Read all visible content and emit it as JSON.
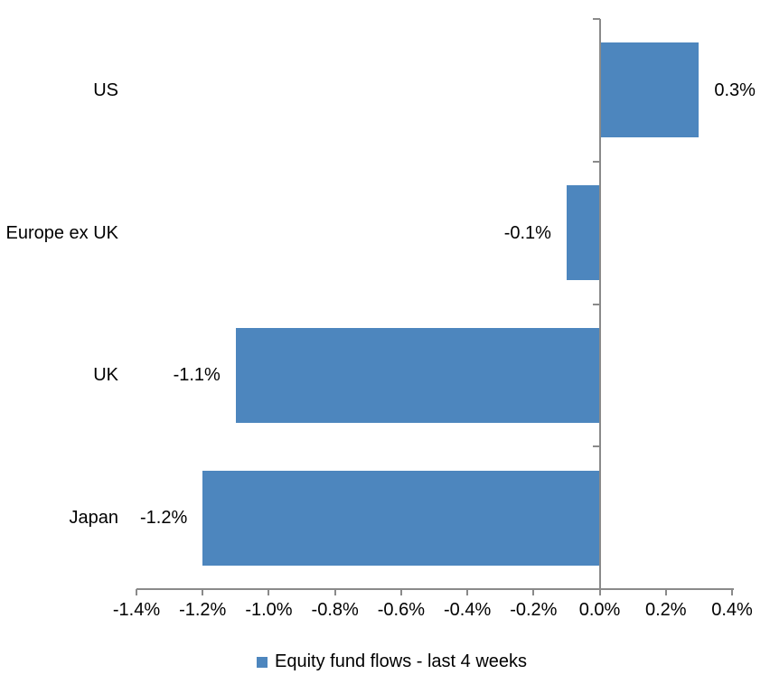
{
  "chart_data": {
    "type": "bar",
    "orientation": "horizontal",
    "title": "",
    "xlabel": "",
    "ylabel": "",
    "categories": [
      "US",
      "Europe ex UK",
      "UK",
      "Japan"
    ],
    "series": [
      {
        "name": "Equity fund flows - last 4 weeks",
        "values": [
          0.3,
          -0.1,
          -1.1,
          -1.2
        ],
        "data_labels": [
          "0.3%",
          "-0.1%",
          "-1.1%",
          "-1.2%"
        ]
      }
    ],
    "value_unit": "percent",
    "xlim": [
      -1.4,
      0.4
    ],
    "tick_step": 0.2,
    "tick_labels": [
      "-1.4%",
      "-1.2%",
      "-1.0%",
      "-0.8%",
      "-0.6%",
      "-0.4%",
      "-0.2%",
      "0.0%",
      "0.2%",
      "0.4%"
    ],
    "grid": false,
    "legend_position": "bottom",
    "bar_color": "#4D86BE",
    "axis_color": "#8A8A8A",
    "text_color": "#000000",
    "background_color": "#FFFFFF"
  }
}
